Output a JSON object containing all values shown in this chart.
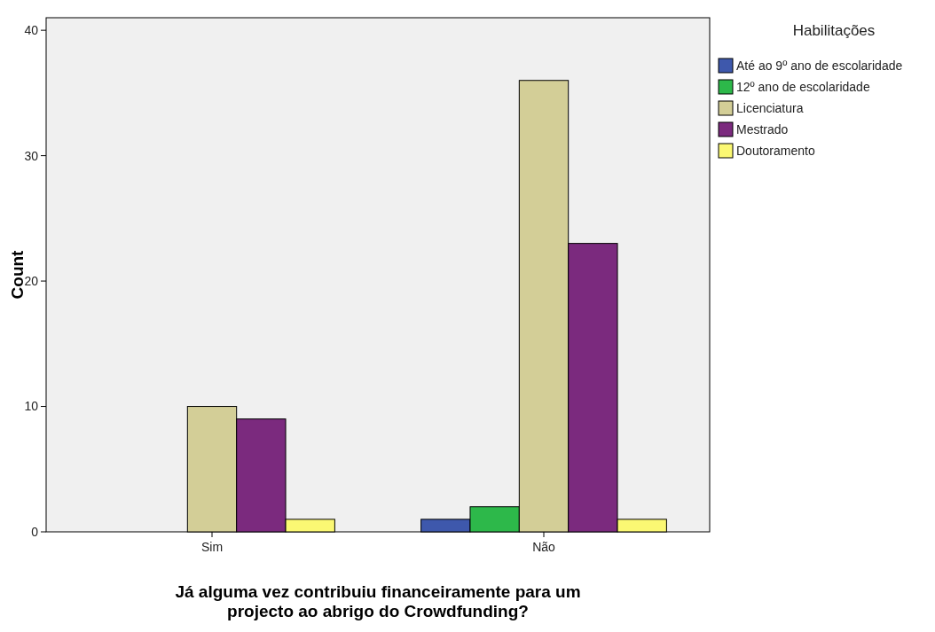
{
  "chart_data": {
    "type": "bar",
    "xlabel": "Já alguma vez contribuiu financeiramente para um projecto ao abrigo do Crowdfunding?",
    "ylabel": "Count",
    "legend_title": "Habilitações",
    "categories": [
      "Sim",
      "Não"
    ],
    "series": [
      {
        "name": "Até ao 9º ano de escolaridade",
        "color": "#3e58ac",
        "values": [
          0,
          1
        ]
      },
      {
        "name": "12º ano de escolaridade",
        "color": "#2db84a",
        "values": [
          0,
          2
        ]
      },
      {
        "name": "Licenciatura",
        "color": "#d3ce97",
        "values": [
          10,
          36
        ]
      },
      {
        "name": "Mestrado",
        "color": "#7b2a7e",
        "values": [
          9,
          23
        ]
      },
      {
        "name": "Doutoramento",
        "color": "#fbf873",
        "values": [
          1,
          1
        ]
      }
    ],
    "ylim": [
      0,
      41
    ],
    "yticks": [
      0,
      10,
      20,
      30,
      40
    ],
    "grid": false,
    "legend": "right"
  }
}
